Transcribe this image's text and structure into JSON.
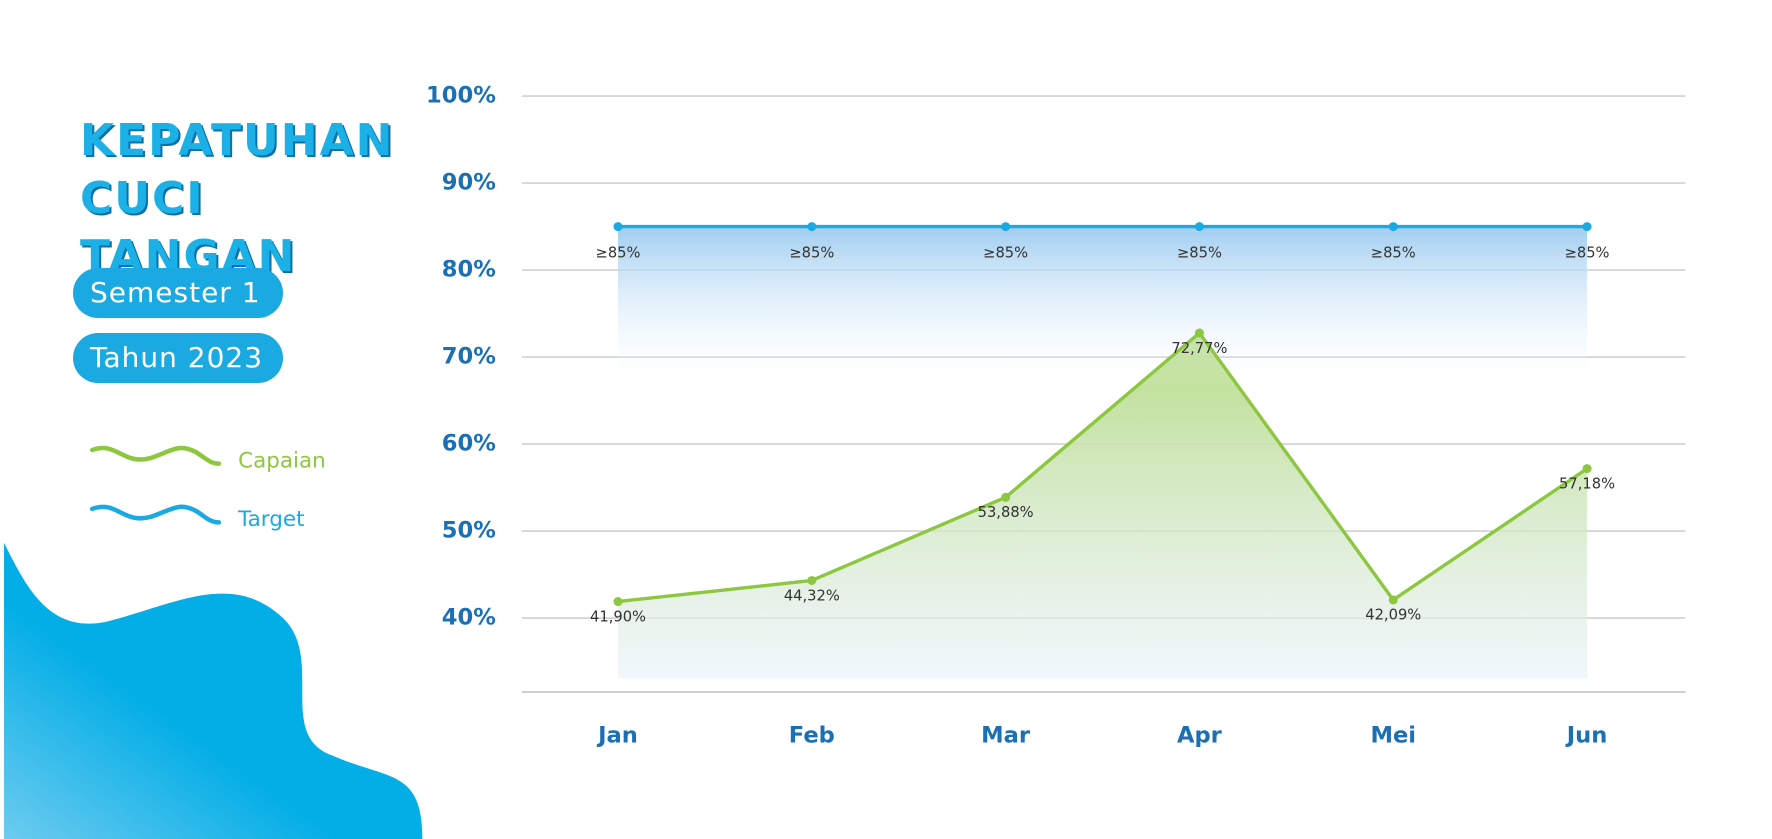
{
  "chart_data": {
    "type": "line",
    "title": "KEPATUHAN CUCI TANGAN",
    "subtitle": [
      "Semester 1",
      "Tahun 2023"
    ],
    "categories": [
      "Jan",
      "Feb",
      "Mar",
      "Apr",
      "Mei",
      "Jun"
    ],
    "series": [
      {
        "name": "Capaian",
        "color": "#8dc63f",
        "values": [
          41.9,
          44.32,
          53.88,
          72.77,
          42.09,
          57.18
        ],
        "value_labels": [
          "41,90%",
          "44,32%",
          "53,88%",
          "72,77%",
          "42,09%",
          "57,18%"
        ]
      },
      {
        "name": "Target",
        "color": "#1ba9e1",
        "values": [
          85,
          85,
          85,
          85,
          85,
          85
        ],
        "value_labels": [
          "≥85%",
          "≥85%",
          "≥85%",
          "≥85%",
          "≥85%",
          "≥85%"
        ]
      }
    ],
    "ylim": [
      31.5,
      100
    ],
    "yticks": [
      {
        "value": 40,
        "label": "40%"
      },
      {
        "value": 50,
        "label": "50%"
      },
      {
        "value": 60,
        "label": "60%"
      },
      {
        "value": 70,
        "label": "70%"
      },
      {
        "value": 80,
        "label": "80%"
      },
      {
        "value": 90,
        "label": "90%"
      },
      {
        "value": 100,
        "label": "100%"
      }
    ],
    "grid": true
  }
}
